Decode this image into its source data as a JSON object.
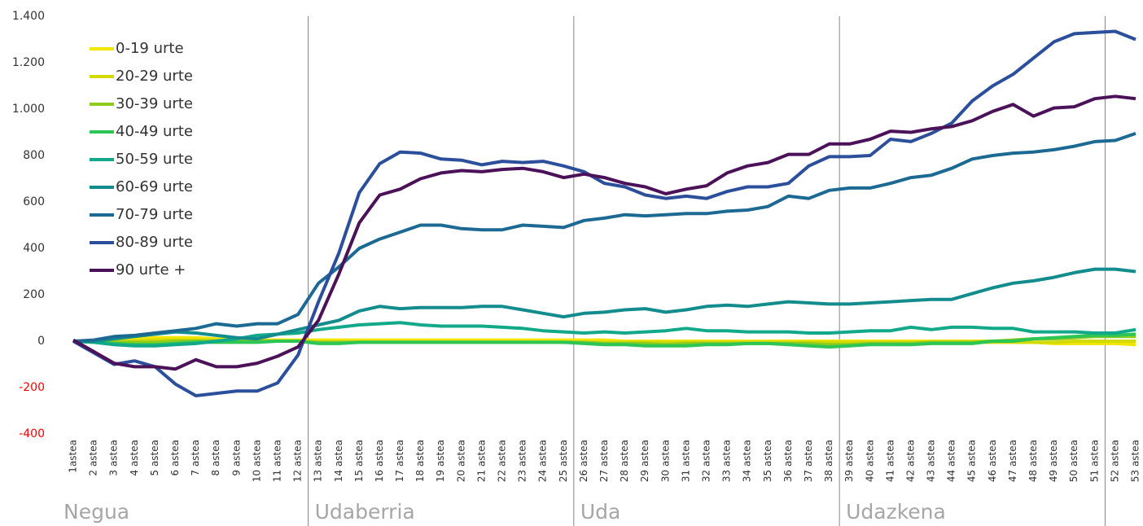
{
  "chart_data": {
    "type": "line",
    "categories": [
      "1astea",
      "2 astea",
      "3 astea",
      "4 astea",
      "5 astea",
      "6 astea",
      "7 astea",
      "8 astea",
      "9 astea",
      "10 astea",
      "11 astea",
      "12 astea",
      "13 astea",
      "14 astea",
      "15 astea",
      "16 astea",
      "17 astea",
      "18 astea",
      "19 astea",
      "20 astea",
      "21 astea",
      "22 astea",
      "23 astea",
      "24 astea",
      "25 astea",
      "26 astea",
      "27 astea",
      "28 astea",
      "29 astea",
      "30 astea",
      "31 astea",
      "32 astea",
      "33 astea",
      "34 astea",
      "35 astea",
      "36 astea",
      "37 astea",
      "38 astea",
      "39 astea",
      "40 astea",
      "41 astea",
      "42 astea",
      "43 astea",
      "44 astea",
      "45 astea",
      "46 astea",
      "47 astea",
      "48 astea",
      "49 astea",
      "50 astea",
      "51 astea",
      "52 astea",
      "53 astea"
    ],
    "series": [
      {
        "name": "0-19 urte",
        "color": "#f2e600",
        "values": [
          0,
          0,
          5,
          10,
          15,
          15,
          15,
          10,
          5,
          5,
          5,
          5,
          5,
          5,
          5,
          5,
          5,
          5,
          5,
          5,
          5,
          5,
          5,
          5,
          5,
          5,
          5,
          0,
          0,
          0,
          0,
          0,
          0,
          0,
          0,
          0,
          0,
          0,
          0,
          0,
          0,
          0,
          0,
          0,
          0,
          0,
          -5,
          -5,
          -10,
          -10,
          -10,
          -10,
          -15
        ]
      },
      {
        "name": "20-29 urte",
        "color": "#d2da00",
        "values": [
          0,
          0,
          0,
          0,
          5,
          5,
          5,
          5,
          0,
          0,
          0,
          0,
          -5,
          -5,
          -5,
          -5,
          -5,
          -5,
          -5,
          -5,
          -5,
          -5,
          -5,
          -5,
          -5,
          -5,
          -5,
          -5,
          -5,
          -5,
          -5,
          -5,
          -5,
          -5,
          -5,
          -5,
          -5,
          -5,
          -5,
          -5,
          -5,
          -5,
          -5,
          -5,
          -5,
          -5,
          -5,
          -5,
          -5,
          0,
          0,
          0,
          0
        ]
      },
      {
        "name": "30-39 urte",
        "color": "#8dcb1c",
        "values": [
          0,
          0,
          -5,
          -5,
          -5,
          0,
          0,
          0,
          0,
          0,
          0,
          0,
          -5,
          -5,
          -5,
          -5,
          -5,
          -5,
          -5,
          -5,
          -5,
          -5,
          -5,
          -5,
          -5,
          -5,
          -10,
          -10,
          -10,
          -15,
          -10,
          -10,
          -10,
          -10,
          -10,
          -10,
          -10,
          -15,
          -15,
          -10,
          -10,
          -10,
          -5,
          -5,
          -5,
          0,
          5,
          10,
          10,
          15,
          20,
          20,
          20
        ]
      },
      {
        "name": "40-49 urte",
        "color": "#2dc553",
        "values": [
          0,
          -5,
          -10,
          -15,
          -15,
          -10,
          -5,
          -5,
          -5,
          -5,
          0,
          0,
          -10,
          -10,
          -5,
          -5,
          -5,
          -5,
          -5,
          -5,
          -5,
          -5,
          -5,
          -5,
          -5,
          -10,
          -15,
          -15,
          -20,
          -20,
          -20,
          -15,
          -15,
          -10,
          -10,
          -15,
          -20,
          -25,
          -20,
          -15,
          -15,
          -15,
          -10,
          -10,
          -10,
          0,
          0,
          10,
          15,
          20,
          25,
          25,
          30
        ]
      },
      {
        "name": "50-59 urte",
        "color": "#12a98a",
        "values": [
          0,
          -5,
          -15,
          -20,
          -20,
          -15,
          -10,
          0,
          10,
          25,
          30,
          35,
          50,
          60,
          70,
          75,
          80,
          70,
          65,
          65,
          65,
          60,
          55,
          45,
          40,
          35,
          40,
          35,
          40,
          45,
          55,
          45,
          45,
          40,
          40,
          40,
          35,
          35,
          40,
          45,
          45,
          60,
          50,
          60,
          60,
          55,
          55,
          40,
          40,
          40,
          35,
          35,
          50
        ]
      },
      {
        "name": "60-69 urte",
        "color": "#138c8e",
        "values": [
          0,
          0,
          10,
          20,
          30,
          40,
          35,
          25,
          15,
          10,
          30,
          50,
          70,
          90,
          130,
          150,
          140,
          145,
          145,
          145,
          150,
          150,
          135,
          120,
          105,
          120,
          125,
          135,
          140,
          125,
          135,
          150,
          155,
          150,
          160,
          170,
          165,
          160,
          160,
          165,
          170,
          175,
          180,
          180,
          205,
          230,
          250,
          260,
          275,
          295,
          310,
          310,
          300
        ]
      },
      {
        "name": "70-79 urte",
        "color": "#1c6a93",
        "values": [
          0,
          5,
          20,
          25,
          35,
          45,
          55,
          75,
          65,
          75,
          75,
          115,
          250,
          320,
          400,
          440,
          470,
          500,
          500,
          485,
          480,
          480,
          500,
          495,
          490,
          520,
          530,
          545,
          540,
          545,
          550,
          550,
          560,
          565,
          580,
          625,
          615,
          650,
          660,
          660,
          680,
          705,
          715,
          745,
          785,
          800,
          810,
          815,
          825,
          840,
          860,
          865,
          895
        ]
      },
      {
        "name": "80-89 urte",
        "color": "#2b4f9a",
        "values": [
          0,
          -50,
          -100,
          -85,
          -110,
          -185,
          -235,
          -225,
          -215,
          -215,
          -180,
          -60,
          170,
          380,
          640,
          765,
          815,
          810,
          785,
          780,
          760,
          775,
          770,
          775,
          755,
          730,
          680,
          665,
          630,
          615,
          625,
          615,
          645,
          665,
          665,
          680,
          755,
          795,
          795,
          800,
          870,
          860,
          895,
          940,
          1035,
          1100,
          1150,
          1220,
          1290,
          1325,
          1330,
          1335,
          1300
        ]
      },
      {
        "name": "90 urte +",
        "color": "#4b1259",
        "values": [
          5,
          -45,
          -95,
          -110,
          -110,
          -120,
          -80,
          -110,
          -110,
          -95,
          -65,
          -25,
          90,
          290,
          510,
          630,
          655,
          700,
          725,
          735,
          730,
          740,
          745,
          730,
          705,
          720,
          705,
          680,
          665,
          635,
          655,
          670,
          725,
          755,
          770,
          805,
          805,
          850,
          850,
          870,
          905,
          900,
          915,
          925,
          950,
          990,
          1020,
          970,
          1005,
          1010,
          1045,
          1055,
          1045
        ]
      }
    ],
    "ylim": [
      -400,
      1400
    ],
    "yticks": [
      {
        "value": 1400,
        "label": "1.400"
      },
      {
        "value": 1200,
        "label": "1.200"
      },
      {
        "value": 1000,
        "label": "1.000"
      },
      800,
      600,
      400,
      200,
      0,
      -200,
      -400
    ],
    "negative_tick_color": "#ff0000",
    "seasons": [
      "Negua",
      "Udaberria",
      "Uda",
      "Udazkena"
    ],
    "season_dividers": [
      12.5,
      25.5,
      38.5,
      51.5
    ],
    "legend": "upper left"
  }
}
